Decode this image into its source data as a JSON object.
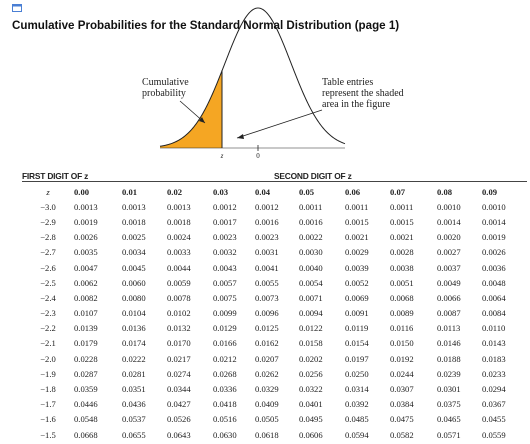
{
  "icon": "window-icon",
  "title": "Cumulative Probabilities for the Standard Normal Distribution (page 1)",
  "figure": {
    "left_caption": [
      "Cumulative",
      "probability"
    ],
    "right_caption": [
      "Table entries",
      "represent the shaded",
      "area in the figure"
    ],
    "z_label": "z",
    "zero_label": "0",
    "shade_color": "#f5a623"
  },
  "table": {
    "first_digit_header": "FIRST DIGIT OF z",
    "second_digit_header": "SECOND DIGIT OF z",
    "z_header": "z",
    "columns": [
      "0.00",
      "0.01",
      "0.02",
      "0.03",
      "0.04",
      "0.05",
      "0.06",
      "0.07",
      "0.08",
      "0.09"
    ],
    "rows": [
      {
        "z": "−3.0",
        "values": [
          "0.0013",
          "0.0013",
          "0.0013",
          "0.0012",
          "0.0012",
          "0.0011",
          "0.0011",
          "0.0011",
          "0.0010",
          "0.0010"
        ]
      },
      {
        "z": "−2.9",
        "values": [
          "0.0019",
          "0.0018",
          "0.0018",
          "0.0017",
          "0.0016",
          "0.0016",
          "0.0015",
          "0.0015",
          "0.0014",
          "0.0014"
        ]
      },
      {
        "z": "−2.8",
        "values": [
          "0.0026",
          "0.0025",
          "0.0024",
          "0.0023",
          "0.0023",
          "0.0022",
          "0.0021",
          "0.0021",
          "0.0020",
          "0.0019"
        ]
      },
      {
        "z": "−2.7",
        "values": [
          "0.0035",
          "0.0034",
          "0.0033",
          "0.0032",
          "0.0031",
          "0.0030",
          "0.0029",
          "0.0028",
          "0.0027",
          "0.0026"
        ]
      },
      {
        "z": "−2.6",
        "values": [
          "0.0047",
          "0.0045",
          "0.0044",
          "0.0043",
          "0.0041",
          "0.0040",
          "0.0039",
          "0.0038",
          "0.0037",
          "0.0036"
        ]
      },
      {
        "z": "−2.5",
        "values": [
          "0.0062",
          "0.0060",
          "0.0059",
          "0.0057",
          "0.0055",
          "0.0054",
          "0.0052",
          "0.0051",
          "0.0049",
          "0.0048"
        ]
      },
      {
        "z": "−2.4",
        "values": [
          "0.0082",
          "0.0080",
          "0.0078",
          "0.0075",
          "0.0073",
          "0.0071",
          "0.0069",
          "0.0068",
          "0.0066",
          "0.0064"
        ]
      },
      {
        "z": "−2.3",
        "values": [
          "0.0107",
          "0.0104",
          "0.0102",
          "0.0099",
          "0.0096",
          "0.0094",
          "0.0091",
          "0.0089",
          "0.0087",
          "0.0084"
        ]
      },
      {
        "z": "−2.2",
        "values": [
          "0.0139",
          "0.0136",
          "0.0132",
          "0.0129",
          "0.0125",
          "0.0122",
          "0.0119",
          "0.0116",
          "0.0113",
          "0.0110"
        ]
      },
      {
        "z": "−2.1",
        "values": [
          "0.0179",
          "0.0174",
          "0.0170",
          "0.0166",
          "0.0162",
          "0.0158",
          "0.0154",
          "0.0150",
          "0.0146",
          "0.0143"
        ]
      },
      {
        "z": "−2.0",
        "values": [
          "0.0228",
          "0.0222",
          "0.0217",
          "0.0212",
          "0.0207",
          "0.0202",
          "0.0197",
          "0.0192",
          "0.0188",
          "0.0183"
        ]
      },
      {
        "z": "−1.9",
        "values": [
          "0.0287",
          "0.0281",
          "0.0274",
          "0.0268",
          "0.0262",
          "0.0256",
          "0.0250",
          "0.0244",
          "0.0239",
          "0.0233"
        ]
      },
      {
        "z": "−1.8",
        "values": [
          "0.0359",
          "0.0351",
          "0.0344",
          "0.0336",
          "0.0329",
          "0.0322",
          "0.0314",
          "0.0307",
          "0.0301",
          "0.0294"
        ]
      },
      {
        "z": "−1.7",
        "values": [
          "0.0446",
          "0.0436",
          "0.0427",
          "0.0418",
          "0.0409",
          "0.0401",
          "0.0392",
          "0.0384",
          "0.0375",
          "0.0367"
        ]
      },
      {
        "z": "−1.6",
        "values": [
          "0.0548",
          "0.0537",
          "0.0526",
          "0.0516",
          "0.0505",
          "0.0495",
          "0.0485",
          "0.0475",
          "0.0465",
          "0.0455"
        ]
      },
      {
        "z": "−1.5",
        "values": [
          "0.0668",
          "0.0655",
          "0.0643",
          "0.0630",
          "0.0618",
          "0.0606",
          "0.0594",
          "0.0582",
          "0.0571",
          "0.0559"
        ]
      }
    ]
  }
}
